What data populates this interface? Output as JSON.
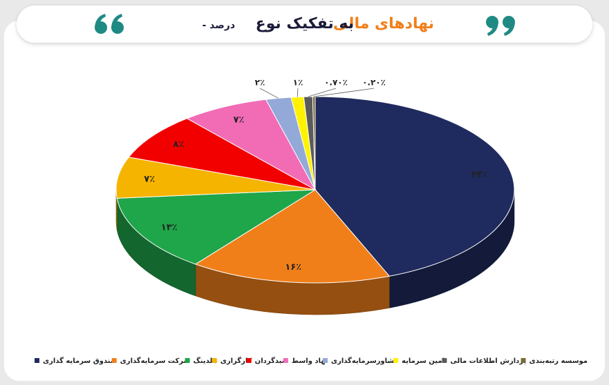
{
  "chart_data": {
    "type": "pie3d",
    "title_highlight": "نهادهای مالی",
    "title": "به تفکیک نوع",
    "subtitle": "- درصد",
    "categories": [
      "صندوق سرمایه گذاری",
      "شرکت سرمایه‌گذاری",
      "هلدینگ",
      "کارگزاری",
      "سبدگردان",
      "نهاد واسط",
      "مشاورسرمایه‌گذاری",
      "تامین سرمایه",
      "پردازش اطلاعات مالی",
      "موسسه رتبه‌بندی"
    ],
    "values": [
      43,
      16,
      13,
      7,
      8,
      7,
      2,
      1,
      0.7,
      0.2
    ],
    "value_labels": [
      "۴۳٪",
      "۱۶٪",
      "۱۳٪",
      "۷٪",
      "۸٪",
      "۷٪",
      "۲٪",
      "۱٪",
      "۰.۷۰٪",
      "۰.۲۰٪"
    ],
    "colors": [
      "#1f2a5e",
      "#f07f1a",
      "#1fa54a",
      "#f5b400",
      "#f20000",
      "#f26bb5",
      "#93a9d8",
      "#fff200",
      "#5b5b5b",
      "#7a6a3a"
    ],
    "legend": "bottom"
  }
}
